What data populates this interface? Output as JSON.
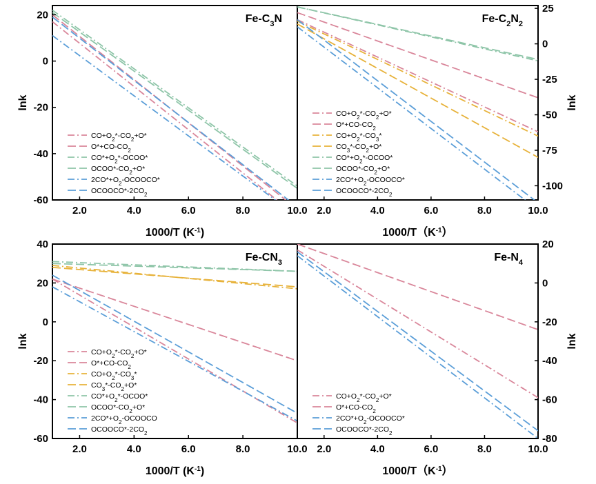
{
  "colors": {
    "pink": "#d9869a",
    "orange": "#e7b23a",
    "green": "#8ec5a8",
    "blue": "#5b9ed8"
  },
  "chart_data": [
    {
      "type": "line",
      "title": "Fe-C3N",
      "title_parts": {
        "base": "Fe-C",
        "sub1": "3",
        "mid": "N",
        "sub2": ""
      },
      "xlabel": "1000/T (K⁻¹)",
      "ylabel": "lnk",
      "xlim": [
        1,
        10
      ],
      "ylim": [
        -60,
        24
      ],
      "y_axis_side": "left",
      "xticks": [
        "2.0",
        "4.0",
        "6.0",
        "8.0",
        "10.0"
      ],
      "yticks": [
        "20",
        "0",
        "-20",
        "-40",
        "-60"
      ],
      "legend_position": "lower-left",
      "series": [
        {
          "name": "CO+O2*-CO2+O*",
          "color": "pink",
          "dash": "dashdot",
          "x": [
            1,
            10
          ],
          "y": [
            17,
            -67
          ]
        },
        {
          "name": "O*+CO-CO2",
          "color": "pink",
          "dash": "dash",
          "x": [
            1,
            10
          ],
          "y": [
            20,
            -64
          ]
        },
        {
          "name": "CO*+O2*-OCOO*",
          "color": "green",
          "dash": "dashdot",
          "x": [
            1,
            10
          ],
          "y": [
            22,
            -54
          ]
        },
        {
          "name": "OCOO*-CO2+O*",
          "color": "green",
          "dash": "dash",
          "x": [
            1,
            10
          ],
          "y": [
            21,
            -55
          ]
        },
        {
          "name": "2CO*+O2-OCOOCO*",
          "color": "blue",
          "dash": "dashdot",
          "x": [
            1,
            10
          ],
          "y": [
            11,
            -67
          ]
        },
        {
          "name": "OCOOCO*-2CO2",
          "color": "blue",
          "dash": "dash",
          "x": [
            1,
            10
          ],
          "y": [
            19,
            -63
          ]
        }
      ]
    },
    {
      "type": "line",
      "title": "Fe-C2N2",
      "title_parts": {
        "base": "Fe-C",
        "sub1": "2",
        "mid": "N",
        "sub2": "2"
      },
      "xlabel": "1000/T（K⁻¹）",
      "ylabel": "lnk",
      "xlim": [
        1,
        10
      ],
      "ylim": [
        -110,
        27
      ],
      "y_axis_side": "right",
      "xticks": [
        "2.0",
        "4.0",
        "6.0",
        "8.0",
        "10.0"
      ],
      "yticks": [
        "25",
        "0",
        "-25",
        "-50",
        "-75",
        "-100"
      ],
      "legend_position": "lower-left",
      "series": [
        {
          "name": "CO+O2*-CO2+O*",
          "color": "pink",
          "dash": "dashdot",
          "x": [
            1,
            10
          ],
          "y": [
            17,
            -62
          ]
        },
        {
          "name": "O*+CO-CO2",
          "color": "pink",
          "dash": "dash",
          "x": [
            1,
            10
          ],
          "y": [
            22,
            -38
          ]
        },
        {
          "name": "CO+O2*-CO3*",
          "color": "orange",
          "dash": "dashdot",
          "x": [
            1,
            10
          ],
          "y": [
            16,
            -65
          ]
        },
        {
          "name": "CO3*-CO2+O*",
          "color": "orange",
          "dash": "dash",
          "x": [
            1,
            10
          ],
          "y": [
            14,
            -80
          ]
        },
        {
          "name": "CO*+O2*-OCOO*",
          "color": "green",
          "dash": "dashdot",
          "x": [
            1,
            10
          ],
          "y": [
            26,
            -12
          ]
        },
        {
          "name": "OCOO*-CO2+O*",
          "color": "green",
          "dash": "dash",
          "x": [
            1,
            10
          ],
          "y": [
            26,
            -11
          ]
        },
        {
          "name": "2CO*+O2-OCOOCO*",
          "color": "blue",
          "dash": "dashdot",
          "x": [
            1,
            10
          ],
          "y": [
            12,
            -117
          ]
        },
        {
          "name": "OCOOCO*-2CO2",
          "color": "blue",
          "dash": "dash",
          "x": [
            1,
            10
          ],
          "y": [
            17,
            -112
          ]
        }
      ]
    },
    {
      "type": "line",
      "title": "Fe-CN3",
      "title_parts": {
        "base": "Fe-CN",
        "sub1": "3",
        "mid": "",
        "sub2": ""
      },
      "xlabel": "1000/T (K⁻¹)",
      "ylabel": "lnk",
      "xlim": [
        1,
        10
      ],
      "ylim": [
        -60,
        40
      ],
      "y_axis_side": "left",
      "xticks": [
        "2.0",
        "4.0",
        "6.0",
        "8.0",
        "10.0"
      ],
      "yticks": [
        "40",
        "20",
        "0",
        "-20",
        "-40",
        "-60"
      ],
      "legend_position": "lower-left",
      "series": [
        {
          "name": "CO+O2*-CO2+O*",
          "color": "pink",
          "dash": "dashdot",
          "x": [
            1,
            10
          ],
          "y": [
            22,
            -52
          ]
        },
        {
          "name": "O*+CO-CO2",
          "color": "pink",
          "dash": "dash",
          "x": [
            1,
            10
          ],
          "y": [
            22,
            -20
          ]
        },
        {
          "name": "CO+O2*-CO3*",
          "color": "orange",
          "dash": "dashdot",
          "x": [
            1,
            10
          ],
          "y": [
            29,
            17
          ]
        },
        {
          "name": "CO3*-CO2+O*",
          "color": "orange",
          "dash": "dash",
          "x": [
            1,
            10
          ],
          "y": [
            28,
            18
          ]
        },
        {
          "name": "CO*+O2*-OCOO*",
          "color": "green",
          "dash": "dashdot",
          "x": [
            1,
            10
          ],
          "y": [
            31,
            26
          ]
        },
        {
          "name": "OCOO*-CO2+O*",
          "color": "green",
          "dash": "dash",
          "x": [
            1,
            10
          ],
          "y": [
            30,
            26
          ]
        },
        {
          "name": "2CO*+O2-OCOOCO",
          "color": "blue",
          "dash": "dashdot",
          "x": [
            1,
            10
          ],
          "y": [
            18,
            -51
          ]
        },
        {
          "name": "OCOOCO*-2CO2",
          "color": "blue",
          "dash": "dash",
          "x": [
            1,
            10
          ],
          "y": [
            24,
            -47
          ]
        }
      ]
    },
    {
      "type": "line",
      "title": "Fe-N4",
      "title_parts": {
        "base": "Fe-N",
        "sub1": "4",
        "mid": "",
        "sub2": ""
      },
      "xlabel": "1000/T（K⁻¹）",
      "ylabel": "lnk",
      "xlim": [
        1,
        10
      ],
      "ylim": [
        -80,
        20
      ],
      "y_axis_side": "right",
      "xticks": [
        "2.0",
        "4.0",
        "6.0",
        "8.0",
        "10.0"
      ],
      "yticks": [
        "20",
        "0",
        "-20",
        "-40",
        "-60",
        "-80"
      ],
      "legend_position": "lower-left",
      "series": [
        {
          "name": "CO+O2*-CO2+O*",
          "color": "pink",
          "dash": "dashdot",
          "x": [
            1,
            10
          ],
          "y": [
            17,
            -59
          ]
        },
        {
          "name": "O*+CO-CO2",
          "color": "pink",
          "dash": "dash",
          "x": [
            1,
            10
          ],
          "y": [
            20,
            -24
          ]
        },
        {
          "name": "2CO*+O2-OCOOCO*",
          "color": "blue",
          "dash": "dashdot",
          "x": [
            1,
            10
          ],
          "y": [
            14,
            -80
          ]
        },
        {
          "name": "OCOOCO*-2CO2",
          "color": "blue",
          "dash": "dash",
          "x": [
            1,
            10
          ],
          "y": [
            16,
            -76
          ]
        }
      ]
    }
  ]
}
